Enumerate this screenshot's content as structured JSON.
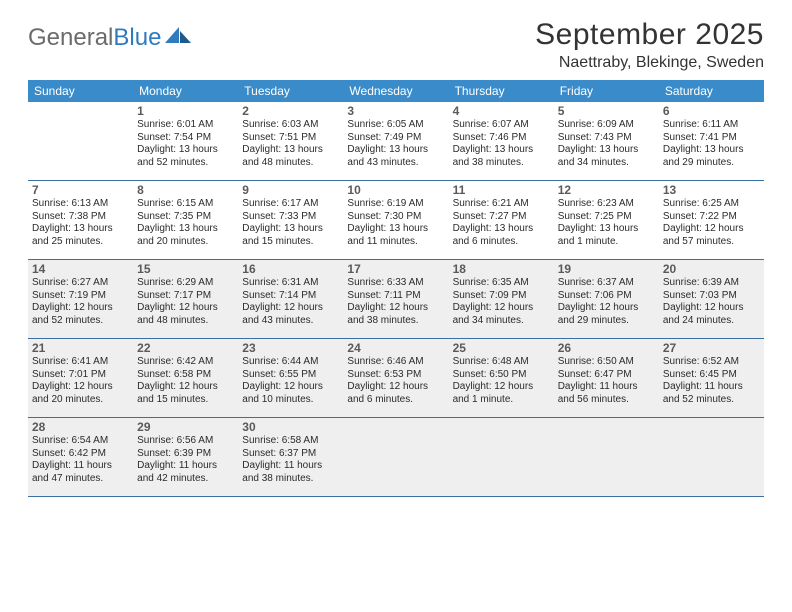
{
  "logo": {
    "word1": "General",
    "word2": "Blue"
  },
  "title": "September 2025",
  "location": "Naettraby, Blekinge, Sweden",
  "colors": {
    "header_bg": "#3a8bc9",
    "header_text": "#ffffff",
    "row_border": "#3a6fa0",
    "shaded_bg": "#efefef",
    "logo_grey": "#6b6b6b",
    "logo_blue": "#2f7bbf",
    "text": "#2b2b2b",
    "daynum": "#5a5a5a"
  },
  "typography": {
    "title_fontsize": 30,
    "location_fontsize": 16,
    "dow_fontsize": 12,
    "daynum_fontsize": 12,
    "body_fontsize": 10
  },
  "days_of_week": [
    "Sunday",
    "Monday",
    "Tuesday",
    "Wednesday",
    "Thursday",
    "Friday",
    "Saturday"
  ],
  "weeks": [
    {
      "shaded": false,
      "days": [
        null,
        {
          "n": "1",
          "sr": "Sunrise: 6:01 AM",
          "ss": "Sunset: 7:54 PM",
          "dl": "Daylight: 13 hours and 52 minutes."
        },
        {
          "n": "2",
          "sr": "Sunrise: 6:03 AM",
          "ss": "Sunset: 7:51 PM",
          "dl": "Daylight: 13 hours and 48 minutes."
        },
        {
          "n": "3",
          "sr": "Sunrise: 6:05 AM",
          "ss": "Sunset: 7:49 PM",
          "dl": "Daylight: 13 hours and 43 minutes."
        },
        {
          "n": "4",
          "sr": "Sunrise: 6:07 AM",
          "ss": "Sunset: 7:46 PM",
          "dl": "Daylight: 13 hours and 38 minutes."
        },
        {
          "n": "5",
          "sr": "Sunrise: 6:09 AM",
          "ss": "Sunset: 7:43 PM",
          "dl": "Daylight: 13 hours and 34 minutes."
        },
        {
          "n": "6",
          "sr": "Sunrise: 6:11 AM",
          "ss": "Sunset: 7:41 PM",
          "dl": "Daylight: 13 hours and 29 minutes."
        }
      ]
    },
    {
      "shaded": false,
      "days": [
        {
          "n": "7",
          "sr": "Sunrise: 6:13 AM",
          "ss": "Sunset: 7:38 PM",
          "dl": "Daylight: 13 hours and 25 minutes."
        },
        {
          "n": "8",
          "sr": "Sunrise: 6:15 AM",
          "ss": "Sunset: 7:35 PM",
          "dl": "Daylight: 13 hours and 20 minutes."
        },
        {
          "n": "9",
          "sr": "Sunrise: 6:17 AM",
          "ss": "Sunset: 7:33 PM",
          "dl": "Daylight: 13 hours and 15 minutes."
        },
        {
          "n": "10",
          "sr": "Sunrise: 6:19 AM",
          "ss": "Sunset: 7:30 PM",
          "dl": "Daylight: 13 hours and 11 minutes."
        },
        {
          "n": "11",
          "sr": "Sunrise: 6:21 AM",
          "ss": "Sunset: 7:27 PM",
          "dl": "Daylight: 13 hours and 6 minutes."
        },
        {
          "n": "12",
          "sr": "Sunrise: 6:23 AM",
          "ss": "Sunset: 7:25 PM",
          "dl": "Daylight: 13 hours and 1 minute."
        },
        {
          "n": "13",
          "sr": "Sunrise: 6:25 AM",
          "ss": "Sunset: 7:22 PM",
          "dl": "Daylight: 12 hours and 57 minutes."
        }
      ]
    },
    {
      "shaded": true,
      "days": [
        {
          "n": "14",
          "sr": "Sunrise: 6:27 AM",
          "ss": "Sunset: 7:19 PM",
          "dl": "Daylight: 12 hours and 52 minutes."
        },
        {
          "n": "15",
          "sr": "Sunrise: 6:29 AM",
          "ss": "Sunset: 7:17 PM",
          "dl": "Daylight: 12 hours and 48 minutes."
        },
        {
          "n": "16",
          "sr": "Sunrise: 6:31 AM",
          "ss": "Sunset: 7:14 PM",
          "dl": "Daylight: 12 hours and 43 minutes."
        },
        {
          "n": "17",
          "sr": "Sunrise: 6:33 AM",
          "ss": "Sunset: 7:11 PM",
          "dl": "Daylight: 12 hours and 38 minutes."
        },
        {
          "n": "18",
          "sr": "Sunrise: 6:35 AM",
          "ss": "Sunset: 7:09 PM",
          "dl": "Daylight: 12 hours and 34 minutes."
        },
        {
          "n": "19",
          "sr": "Sunrise: 6:37 AM",
          "ss": "Sunset: 7:06 PM",
          "dl": "Daylight: 12 hours and 29 minutes."
        },
        {
          "n": "20",
          "sr": "Sunrise: 6:39 AM",
          "ss": "Sunset: 7:03 PM",
          "dl": "Daylight: 12 hours and 24 minutes."
        }
      ]
    },
    {
      "shaded": true,
      "days": [
        {
          "n": "21",
          "sr": "Sunrise: 6:41 AM",
          "ss": "Sunset: 7:01 PM",
          "dl": "Daylight: 12 hours and 20 minutes."
        },
        {
          "n": "22",
          "sr": "Sunrise: 6:42 AM",
          "ss": "Sunset: 6:58 PM",
          "dl": "Daylight: 12 hours and 15 minutes."
        },
        {
          "n": "23",
          "sr": "Sunrise: 6:44 AM",
          "ss": "Sunset: 6:55 PM",
          "dl": "Daylight: 12 hours and 10 minutes."
        },
        {
          "n": "24",
          "sr": "Sunrise: 6:46 AM",
          "ss": "Sunset: 6:53 PM",
          "dl": "Daylight: 12 hours and 6 minutes."
        },
        {
          "n": "25",
          "sr": "Sunrise: 6:48 AM",
          "ss": "Sunset: 6:50 PM",
          "dl": "Daylight: 12 hours and 1 minute."
        },
        {
          "n": "26",
          "sr": "Sunrise: 6:50 AM",
          "ss": "Sunset: 6:47 PM",
          "dl": "Daylight: 11 hours and 56 minutes."
        },
        {
          "n": "27",
          "sr": "Sunrise: 6:52 AM",
          "ss": "Sunset: 6:45 PM",
          "dl": "Daylight: 11 hours and 52 minutes."
        }
      ]
    },
    {
      "shaded": true,
      "days": [
        {
          "n": "28",
          "sr": "Sunrise: 6:54 AM",
          "ss": "Sunset: 6:42 PM",
          "dl": "Daylight: 11 hours and 47 minutes."
        },
        {
          "n": "29",
          "sr": "Sunrise: 6:56 AM",
          "ss": "Sunset: 6:39 PM",
          "dl": "Daylight: 11 hours and 42 minutes."
        },
        {
          "n": "30",
          "sr": "Sunrise: 6:58 AM",
          "ss": "Sunset: 6:37 PM",
          "dl": "Daylight: 11 hours and 38 minutes."
        },
        null,
        null,
        null,
        null
      ]
    }
  ]
}
